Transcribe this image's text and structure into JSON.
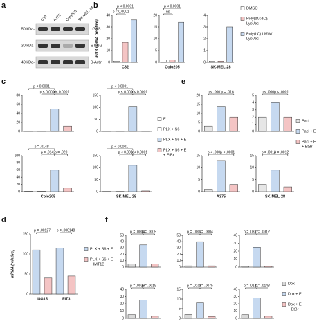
{
  "blot": {
    "label": "a",
    "lanes": [
      "C32",
      "A375",
      "Colo205",
      "SK-MEL-28"
    ],
    "rows": [
      {
        "marker": "50 kDa-",
        "protein": "cGAS"
      },
      {
        "marker": "30 kDa-",
        "protein": "STING"
      },
      {
        "marker": "40 kDa-",
        "protein": "β-Actin"
      }
    ]
  },
  "chart_data": [
    {
      "type": "bar",
      "label": "b",
      "ylabel": "IFIT3 mRNA (relative)",
      "series": [
        {
          "name": [
            "DMSO"
          ],
          "color": "#ffffff"
        },
        {
          "name": [
            "Poly(dG:dC)/",
            "LyoVec"
          ],
          "color": "#f4c4c4"
        },
        {
          "name": [
            "Poly(I:C) LMW/",
            "LyoVec"
          ],
          "color": "#c6d9f0"
        }
      ],
      "subcharts": [
        {
          "xlabel": "C32",
          "values": [
            1,
            17,
            36
          ],
          "ylim": [
            0,
            40
          ],
          "yticks": [
            0,
            10,
            20,
            30,
            40
          ],
          "pvalues": [
            "p < 0.0001",
            "p < 0.0001"
          ]
        },
        {
          "xlabel": "Colo205",
          "values": [
            1,
            1,
            17
          ],
          "ylim": [
            0,
            20
          ],
          "yticks": [
            0,
            5,
            10,
            15,
            20
          ],
          "pvalues": [
            "ns",
            "p < 0.0001"
          ]
        },
        {
          "xlabel": "SK-MEL-28",
          "values": [
            0.1,
            0.1,
            3
          ],
          "ylim": [
            0,
            4
          ],
          "yticks": [
            0,
            1,
            2,
            3,
            4
          ],
          "pvalues": []
        }
      ]
    },
    {
      "type": "bar",
      "label": "c",
      "series": [
        {
          "name": [
            "E"
          ],
          "color": "#ffffff"
        },
        {
          "name": [
            "PLX + S6"
          ],
          "color": "#ffffff"
        },
        {
          "name": [
            "PLX + S6 + E"
          ],
          "color": "#c6d9f0"
        },
        {
          "name": [
            "PLX + S6 + E",
            "+ EtBr"
          ],
          "color": "#f4c4c4"
        }
      ],
      "subcharts": [
        {
          "ylabel": "ISG15 mRNA (relative)",
          "values": [
            0.5,
            0.5,
            50,
            12
          ],
          "ylim": [
            0,
            80
          ],
          "yticks": [
            0,
            20,
            40,
            60,
            80
          ],
          "pvalues": [
            "p < 0.0001",
            "p < 0.0001",
            "p < 0.0001"
          ]
        },
        {
          "values": [
            1,
            1,
            105,
            2
          ],
          "ylim": [
            0,
            150
          ],
          "yticks": [
            0,
            50,
            100,
            150
          ],
          "pvalues": [
            "p < 0.0001",
            "p < 0.0001",
            "p < 0.0001"
          ]
        },
        {
          "ylabel": "IFIT3 mRNA (relative)",
          "xlabel": "Colo205",
          "values": [
            1,
            1,
            60,
            10
          ],
          "ylim": [
            0,
            100
          ],
          "yticks": [
            0,
            20,
            40,
            60,
            80,
            100
          ],
          "pvalues": [
            "p = .0148",
            "p = .0142",
            "p = .020"
          ]
        },
        {
          "xlabel": "SK-MEL-28",
          "values": [
            1,
            1,
            110,
            3
          ],
          "ylim": [
            0,
            150
          ],
          "yticks": [
            0,
            50,
            100,
            150
          ],
          "pvalues": [
            "p < 0.0001",
            "p < 0.0001",
            "p < 0.0001"
          ]
        }
      ]
    },
    {
      "type": "bar",
      "label": "d",
      "ylabel": "mRNA (relative)",
      "ylim": [
        0,
        150
      ],
      "yticks": [
        0,
        50,
        100,
        150
      ],
      "series": [
        {
          "name": [
            "PLX + S6 + E"
          ],
          "color": "#c6d9f0"
        },
        {
          "name": [
            "PLX + S6 + E",
            "+ IMT1B"
          ],
          "color": "#f4c4c4"
        }
      ],
      "subcharts": [
        {
          "xlabel": "ISG15",
          "values": [
            110,
            40
          ],
          "pvalues": [
            "p = .00127"
          ]
        },
        {
          "xlabel": "IFIT3",
          "values": [
            115,
            45
          ],
          "pvalues": [
            "p = .000148"
          ]
        }
      ]
    },
    {
      "type": "bar",
      "label": "e",
      "series": [
        {
          "name": [
            "Pacl"
          ],
          "color": "#e6e6e6"
        },
        {
          "name": [
            "Pacl + E"
          ],
          "color": "#c6d9f0"
        },
        {
          "name": [
            "Pacl + E",
            "+ EtBr"
          ],
          "color": "#f4c4c4"
        }
      ],
      "subcharts": [
        {
          "ylabel": "ISG15 mRNA (relative)",
          "values": [
            3,
            14,
            8
          ],
          "ylim": [
            0,
            20
          ],
          "yticks": [
            0,
            5,
            10,
            15,
            20
          ],
          "pvalues": [
            "p < .0001",
            "p = .016"
          ]
        },
        {
          "values": [
            2,
            4,
            2
          ],
          "ylim": [
            0,
            5
          ],
          "yticks": [
            0,
            1,
            2,
            3,
            4,
            5
          ],
          "pvalues": [
            "p < .0001",
            "p < .0001"
          ]
        },
        {
          "ylabel": "IFIT3 mRNA (relative)",
          "xlabel": "A375",
          "values": [
            1,
            13,
            3
          ],
          "ylim": [
            0,
            15
          ],
          "yticks": [
            0,
            5,
            10,
            15
          ],
          "pvalues": [
            "p < .0001",
            "p < .0001"
          ]
        },
        {
          "xlabel": "SK-MEL-28",
          "values": [
            3,
            9,
            2
          ],
          "ylim": [
            0,
            15
          ],
          "yticks": [
            0,
            5,
            10,
            15
          ],
          "pvalues": [
            "p = .0013",
            "p = .0012"
          ]
        }
      ]
    },
    {
      "type": "bar",
      "label": "f",
      "series": [
        {
          "name": [
            "Dox"
          ],
          "color": "#d9d9d9"
        },
        {
          "name": [
            "Dox + E"
          ],
          "color": "#c6d9f0"
        },
        {
          "name": [
            "Dox + E",
            "+ EtBr"
          ],
          "color": "#f4c4c4"
        }
      ],
      "subcharts": [
        {
          "ylabel": "ISG15 mRNA (relative)",
          "values": [
            5,
            35,
            5
          ],
          "ylim": [
            0,
            50
          ],
          "yticks": [
            0,
            10,
            20,
            30,
            40,
            50
          ],
          "pvalues": [
            "p = .0004",
            "p = .0005"
          ]
        },
        {
          "values": [
            2,
            40,
            2
          ],
          "ylim": [
            0,
            50
          ],
          "yticks": [
            0,
            10,
            20,
            30,
            40,
            50
          ],
          "pvalues": [
            "p = .0004",
            "p = .0004"
          ]
        },
        {
          "values": [
            1,
            25,
            1
          ],
          "ylim": [
            0,
            40
          ],
          "yticks": [
            0,
            10,
            20,
            30,
            40
          ],
          "pvalues": [
            "p = .0317",
            "p = .0312"
          ]
        },
        {
          "ylabel": "IFIT3 mRNA (relative)",
          "values": [
            5,
            25,
            3
          ],
          "ylim": [
            0,
            40
          ],
          "yticks": [
            0,
            10,
            20,
            30,
            40
          ],
          "pvalues": [
            "p = .0039",
            "p = .0019"
          ]
        },
        {
          "values": [
            2,
            8,
            1
          ],
          "ylim": [
            0,
            15
          ],
          "yticks": [
            0,
            5,
            10,
            15
          ],
          "pvalues": [
            "p = .0101",
            "p = .0075"
          ]
        },
        {
          "values": [
            5,
            28,
            3
          ],
          "ylim": [
            0,
            40
          ],
          "yticks": [
            0,
            10,
            20,
            30,
            40
          ],
          "pvalues": [
            "p = .0141",
            "p = .0148"
          ]
        }
      ]
    }
  ]
}
